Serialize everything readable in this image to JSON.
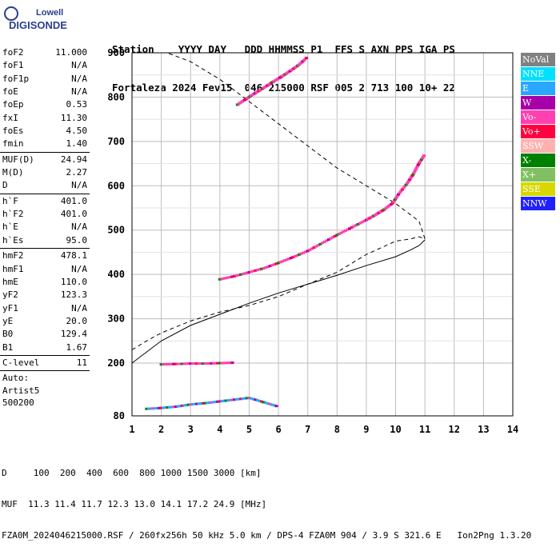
{
  "logo": {
    "top": "Lowell",
    "bottom": "DIGISONDE"
  },
  "header": {
    "line1": "Station    YYYY DAY   DDD HHMMSS P1  FFS S AXN PPS IGA PS",
    "line2": "Fortaleza 2024 Fev15  046 215000 RSF 005 2 713 100 10+ 22"
  },
  "params": [
    {
      "label": "foF2",
      "value": "11.000"
    },
    {
      "label": "foF1",
      "value": "N/A"
    },
    {
      "label": "foF1p",
      "value": "N/A"
    },
    {
      "label": "foE",
      "value": "N/A"
    },
    {
      "label": "foEp",
      "value": "0.53"
    },
    {
      "label": "fxI",
      "value": "11.30"
    },
    {
      "label": "foEs",
      "value": "4.50"
    },
    {
      "label": "fmin",
      "value": "1.40"
    },
    {
      "sep": true
    },
    {
      "label": "MUF(D)",
      "value": "24.94"
    },
    {
      "label": "M(D)",
      "value": "2.27"
    },
    {
      "label": "D",
      "value": "N/A"
    },
    {
      "sep": true
    },
    {
      "label": "h`F",
      "value": "401.0"
    },
    {
      "label": "h`F2",
      "value": "401.0"
    },
    {
      "label": "h`E",
      "value": "N/A"
    },
    {
      "label": "h`Es",
      "value": "95.0"
    },
    {
      "sep": true
    },
    {
      "label": "hmF2",
      "value": "478.1"
    },
    {
      "label": "hmF1",
      "value": "N/A"
    },
    {
      "label": "hmE",
      "value": "110.0"
    },
    {
      "label": "yF2",
      "value": "123.3"
    },
    {
      "label": "yF1",
      "value": "N/A"
    },
    {
      "label": "yE",
      "value": "20.0"
    },
    {
      "label": "B0",
      "value": "129.4"
    },
    {
      "label": "B1",
      "value": "1.67"
    },
    {
      "sep": true
    },
    {
      "label": "C-level",
      "value": "11"
    },
    {
      "sep": true
    },
    {
      "text": "Auto:"
    },
    {
      "text": "Artist5"
    },
    {
      "text": "500200"
    }
  ],
  "legend": [
    {
      "label": "NoVal",
      "color": "#808080"
    },
    {
      "label": "NNE",
      "color": "#00e0ff"
    },
    {
      "label": "E",
      "color": "#2aa7ff"
    },
    {
      "label": "W",
      "color": "#a800a8"
    },
    {
      "label": "Vo-",
      "color": "#ff40b0"
    },
    {
      "label": "Vo+",
      "color": "#ff0040"
    },
    {
      "label": "SSW",
      "color": "#ffb0b0"
    },
    {
      "label": "X-",
      "color": "#008000"
    },
    {
      "label": "X+",
      "color": "#80c060"
    },
    {
      "label": "SSE",
      "color": "#d8d800"
    },
    {
      "label": "NNW",
      "color": "#2020ff"
    }
  ],
  "footer": {
    "line1": "D     100  200  400  600  800 1000 1500 3000 [km]",
    "line2": "MUF  11.3 11.4 11.7 12.3 13.0 14.1 17.2 24.9 [MHz]",
    "line3": "FZA0M_2024046215000.RSF / 260fx256h 50 kHz 5.0 km / DPS-4 FZA0M 904 / 3.9 S 321.6 E   Ion2Png 1.3.20"
  },
  "chart_data": {
    "type": "scatter",
    "xlim": [
      1,
      14
    ],
    "ylim": [
      80,
      900
    ],
    "x_ticks": [
      1,
      2,
      3,
      4,
      5,
      6,
      7,
      8,
      9,
      10,
      11,
      12,
      13,
      14
    ],
    "y_ticks": [
      80,
      200,
      300,
      400,
      500,
      600,
      700,
      800,
      900
    ],
    "y_tick_labels": [
      "80",
      "200",
      "300",
      "400",
      "500",
      "600",
      "700",
      "800",
      "900"
    ],
    "grid": true,
    "traces": [
      {
        "label": "O trace F2",
        "color": "#ff40b0",
        "x": [
          4.0,
          4.5,
          5.0,
          5.5,
          6.0,
          6.5,
          7.0,
          7.5,
          8.0,
          8.5,
          9.0,
          9.3,
          9.6,
          9.9,
          10.1,
          10.4,
          10.6,
          10.8,
          11.0
        ],
        "y": [
          388,
          395,
          404,
          413,
          425,
          438,
          452,
          470,
          488,
          505,
          522,
          533,
          545,
          560,
          580,
          605,
          625,
          650,
          670
        ]
      },
      {
        "label": "Multiple reflection",
        "color": "#ff40b0",
        "x": [
          4.6,
          4.9,
          5.2,
          5.5,
          5.8,
          6.1,
          6.4,
          6.7,
          7.0
        ],
        "y": [
          782,
          795,
          808,
          820,
          833,
          845,
          858,
          872,
          890
        ]
      },
      {
        "label": "Es trace",
        "color": "#ff40b0",
        "x": [
          2.0,
          2.5,
          3.0,
          3.5,
          4.0,
          4.5
        ],
        "y": [
          196,
          197,
          198,
          198,
          199,
          200
        ]
      },
      {
        "label": "Low-height echoes",
        "color": "#2aa7ff",
        "x": [
          1.5,
          2.0,
          2.5,
          3.0,
          3.5,
          4.0,
          4.5,
          5.0,
          5.5,
          6.0
        ],
        "y": [
          95,
          97,
          100,
          105,
          108,
          112,
          116,
          120,
          110,
          100
        ]
      }
    ],
    "profile": {
      "label": "Electron density profile",
      "x": [
        1.0,
        2.0,
        3.0,
        4.0,
        5.0,
        6.0,
        7.0,
        8.0,
        9.0,
        10.0,
        10.5,
        10.8,
        11.0
      ],
      "y": [
        200,
        250,
        285,
        310,
        335,
        358,
        378,
        398,
        420,
        440,
        455,
        465,
        478
      ]
    },
    "reflection_curve": {
      "label": "Model / upper extrapolation",
      "x": [
        1.0,
        1.5,
        2.0,
        3.0,
        4.0,
        5.0,
        6.0,
        7.0,
        8.0,
        9.0,
        9.5,
        10.0,
        10.5,
        10.8,
        11.0,
        10.8,
        10.0,
        9.0,
        8.0,
        7.0,
        6.0,
        5.0,
        4.0,
        3.0,
        2.2,
        2.0
      ],
      "y": [
        230,
        250,
        268,
        295,
        315,
        330,
        350,
        378,
        405,
        445,
        460,
        475,
        480,
        485,
        480,
        520,
        560,
        600,
        640,
        690,
        740,
        790,
        840,
        880,
        900,
        900
      ]
    }
  }
}
